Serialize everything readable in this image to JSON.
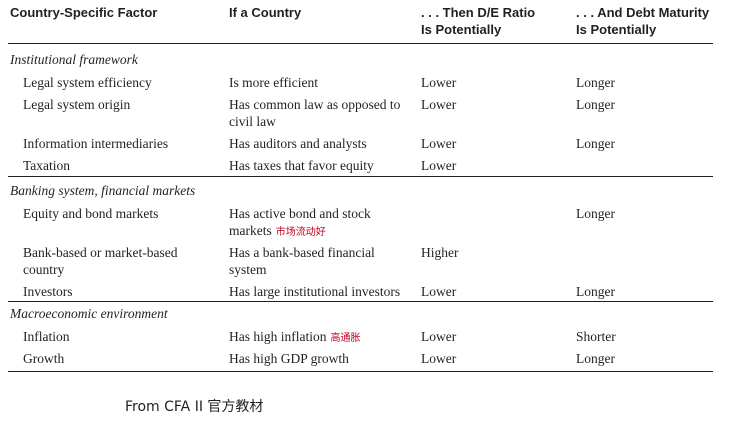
{
  "table": {
    "headers": [
      "Country-Specific Factor",
      "If a Country",
      ". . . Then D/E Ratio\nIs Potentially",
      ". . . And Debt Maturity\nIs Potentially"
    ],
    "sections": [
      {
        "title": "Institutional framework",
        "rows": [
          {
            "factor": "Legal system efficiency",
            "if": "Is more efficient",
            "de": "Lower",
            "maturity": "Longer"
          },
          {
            "factor": "Legal system origin",
            "if": "Has common law as opposed to civil law",
            "de": "Lower",
            "maturity": "Longer"
          },
          {
            "factor": "Information intermediaries",
            "if": "Has auditors and analysts",
            "de": "Lower",
            "maturity": "Longer"
          },
          {
            "factor": "Taxation",
            "if": "Has taxes that favor equity",
            "de": "Lower",
            "maturity": ""
          }
        ]
      },
      {
        "title": "Banking system, financial markets",
        "rows": [
          {
            "factor": "Equity and bond markets",
            "if": "Has active bond and stock markets",
            "note": "市场流动好",
            "de": "",
            "maturity": "Longer"
          },
          {
            "factor": "Bank-based or market-based country",
            "if": "Has a bank-based financial system",
            "de": "Higher",
            "maturity": ""
          },
          {
            "factor": "Investors",
            "if": "Has large institutional investors",
            "de": "Lower",
            "maturity": "Longer"
          }
        ]
      },
      {
        "title": "Macroeconomic environment",
        "rows": [
          {
            "factor": "Inflation",
            "if": "Has high inflation",
            "note": "高通胀",
            "de": "Lower",
            "maturity": "Shorter"
          },
          {
            "factor": "Growth",
            "if": "Has high GDP growth",
            "de": "Lower",
            "maturity": "Longer"
          }
        ]
      }
    ]
  },
  "source_note": "From CFA II 官方教材"
}
